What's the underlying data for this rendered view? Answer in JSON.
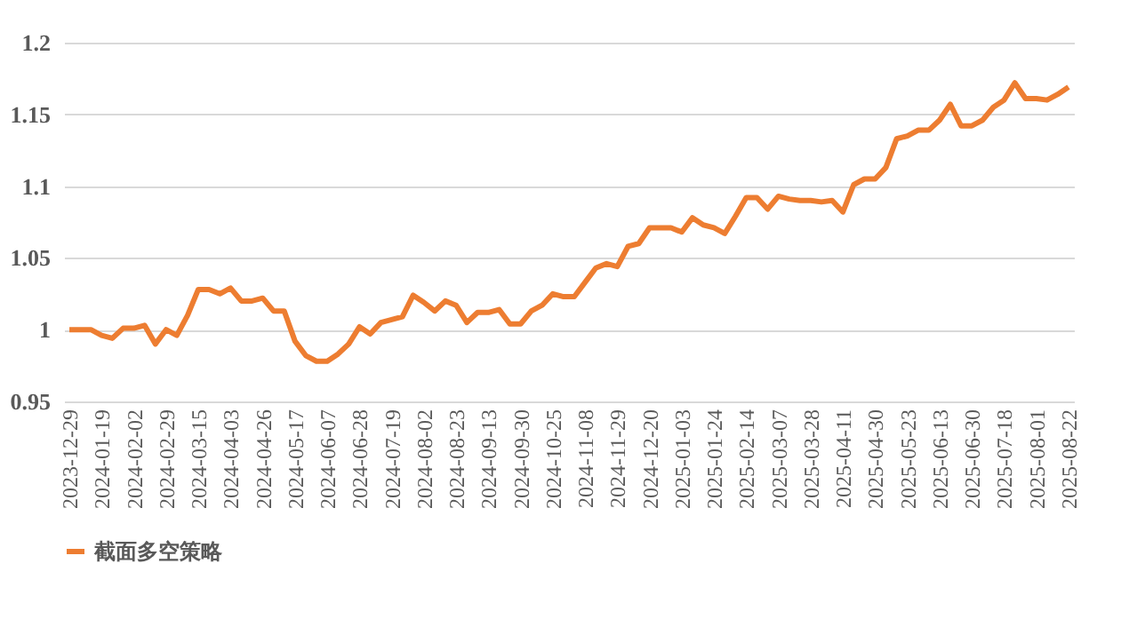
{
  "chart_data": {
    "type": "line",
    "categories": [
      "2023-12-29",
      null,
      null,
      "2024-01-19",
      null,
      null,
      "2024-02-02",
      null,
      null,
      "2024-02-29",
      null,
      null,
      "2024-03-15",
      null,
      null,
      "2024-04-03",
      null,
      null,
      "2024-04-26",
      null,
      null,
      "2024-05-17",
      null,
      null,
      "2024-06-07",
      null,
      null,
      "2024-06-28",
      null,
      null,
      "2024-07-19",
      null,
      null,
      "2024-08-02",
      null,
      null,
      "2024-08-23",
      null,
      null,
      "2024-09-13",
      null,
      null,
      "2024-09-30",
      null,
      null,
      "2024-10-25",
      null,
      null,
      "2024-11-08",
      null,
      null,
      "2024-11-29",
      null,
      null,
      "2024-12-20",
      null,
      null,
      "2025-01-03",
      null,
      null,
      "2025-01-24",
      null,
      null,
      "2025-02-14",
      null,
      null,
      "2025-03-07",
      null,
      null,
      "2025-03-28",
      null,
      null,
      "2025-04-11",
      null,
      null,
      "2025-04-30",
      null,
      null,
      "2025-05-23",
      null,
      null,
      "2025-06-13",
      null,
      null,
      "2025-06-30",
      null,
      null,
      "2025-07-18",
      null,
      null,
      "2025-08-01",
      null,
      null,
      "2025-08-22"
    ],
    "series": [
      {
        "name": "截面多空策略",
        "color": "#ed7d31",
        "values": [
          1.0,
          1.0,
          1.0,
          0.996,
          0.994,
          1.001,
          1.001,
          1.003,
          0.99,
          1.0,
          0.996,
          1.01,
          1.028,
          1.028,
          1.025,
          1.029,
          1.02,
          1.02,
          1.022,
          1.013,
          1.013,
          0.992,
          0.982,
          0.978,
          0.978,
          0.983,
          0.99,
          1.002,
          0.997,
          1.005,
          1.007,
          1.009,
          1.024,
          1.019,
          1.013,
          1.02,
          1.017,
          1.005,
          1.012,
          1.012,
          1.014,
          1.004,
          1.004,
          1.013,
          1.017,
          1.025,
          1.023,
          1.023,
          1.033,
          1.043,
          1.046,
          1.044,
          1.058,
          1.06,
          1.071,
          1.071,
          1.071,
          1.068,
          1.078,
          1.073,
          1.071,
          1.067,
          1.079,
          1.092,
          1.092,
          1.084,
          1.093,
          1.091,
          1.09,
          1.09,
          1.089,
          1.09,
          1.082,
          1.101,
          1.105,
          1.105,
          1.113,
          1.133,
          1.135,
          1.139,
          1.139,
          1.146,
          1.157,
          1.142,
          1.142,
          1.146,
          1.155,
          1.16,
          1.172,
          1.161,
          1.161,
          1.16,
          1.164,
          1.169
        ]
      }
    ],
    "ylim": [
      0.95,
      1.2
    ],
    "yticks": [
      0.95,
      {
        "value": 1,
        "label": "1"
      },
      1.05,
      {
        "value": 1.1,
        "label": "1.1"
      },
      1.15,
      {
        "value": 1.2,
        "label": "1.2"
      }
    ],
    "grid": "y",
    "legend": "bottom",
    "marker": "none",
    "line_style": "solid"
  }
}
